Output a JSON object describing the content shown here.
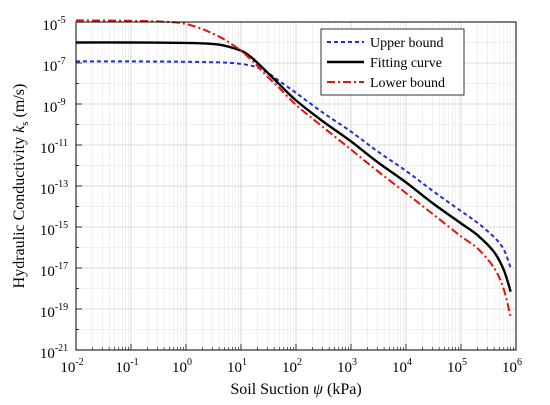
{
  "chart_data": {
    "type": "line",
    "xlabel_prefix": "Soil Suction ",
    "xlabel_symbol": "ψ",
    "xlabel_unit": " (kPa)",
    "ylabel_prefix": "Hydraulic Conductivity ",
    "ylabel_symbol": "k",
    "ylabel_subscript": "s",
    "ylabel_unit": " (m/s)",
    "x_scale": "log",
    "y_scale": "log",
    "xlim": [
      0.01,
      1000000
    ],
    "ylim": [
      1e-21,
      1e-05
    ],
    "x_ticks": [
      {
        "base": "10",
        "exp": "-2",
        "value": 0.01
      },
      {
        "base": "10",
        "exp": "-1",
        "value": 0.1
      },
      {
        "base": "10",
        "exp": "0",
        "value": 1
      },
      {
        "base": "10",
        "exp": "1",
        "value": 10
      },
      {
        "base": "10",
        "exp": "2",
        "value": 100
      },
      {
        "base": "10",
        "exp": "3",
        "value": 1000
      },
      {
        "base": "10",
        "exp": "4",
        "value": 10000
      },
      {
        "base": "10",
        "exp": "5",
        "value": 100000
      },
      {
        "base": "10",
        "exp": "6",
        "value": 1000000
      }
    ],
    "y_ticks": [
      {
        "base": "10",
        "exp": "-5",
        "value": 1e-05
      },
      {
        "base": "10",
        "exp": "-7",
        "value": 1e-07
      },
      {
        "base": "10",
        "exp": "-9",
        "value": 1e-09
      },
      {
        "base": "10",
        "exp": "-11",
        "value": 1e-11
      },
      {
        "base": "10",
        "exp": "-13",
        "value": 1e-13
      },
      {
        "base": "10",
        "exp": "-15",
        "value": 1e-15
      },
      {
        "base": "10",
        "exp": "-17",
        "value": 1e-17
      },
      {
        "base": "10",
        "exp": "-19",
        "value": 1e-19
      },
      {
        "base": "10",
        "exp": "-21",
        "value": 1e-21
      }
    ],
    "grid": true,
    "legend_position": "top-right",
    "series": [
      {
        "name": "Upper bound",
        "color": "#1f2fd6",
        "dash": "dashed",
        "x": [
          0.01,
          0.1,
          1,
          5,
          10,
          15,
          20,
          30,
          50,
          100,
          300,
          1000,
          3000,
          10000,
          30000,
          100000,
          200000,
          400000,
          600000,
          800000
        ],
        "y": [
          1.2e-07,
          1.2e-07,
          1.15e-07,
          1.05e-07,
          9e-08,
          7.5e-08,
          6e-08,
          3.5e-08,
          1.3e-08,
          3.5e-09,
          4e-10,
          4.5e-11,
          5e-12,
          5.5e-13,
          6e-14,
          6e-15,
          1.6e-15,
          3.2e-16,
          8e-17,
          1e-17
        ]
      },
      {
        "name": "Fitting curve",
        "color": "#000000",
        "dash": "solid",
        "x": [
          0.01,
          0.1,
          1,
          3,
          5,
          10,
          15,
          20,
          30,
          50,
          100,
          300,
          1000,
          3000,
          10000,
          30000,
          100000,
          200000,
          400000,
          600000,
          800000
        ],
        "y": [
          1e-06,
          1e-06,
          9.5e-07,
          8.5e-07,
          7e-07,
          4e-07,
          2e-07,
          1e-07,
          3.5e-08,
          9e-09,
          1.5e-09,
          1.5e-10,
          1.5e-11,
          1.5e-12,
          1.5e-13,
          1.5e-14,
          1.5e-15,
          4e-16,
          6e-17,
          8e-18,
          7e-19
        ]
      },
      {
        "name": "Lower bound",
        "color": "#e3120b",
        "dash": "dashdot",
        "x": [
          0.01,
          0.1,
          0.5,
          1,
          2,
          3,
          5,
          10,
          15,
          20,
          30,
          50,
          100,
          300,
          1000,
          3000,
          10000,
          30000,
          100000,
          200000,
          400000,
          600000,
          800000
        ],
        "y": [
          1.2e-05,
          1.15e-05,
          1e-05,
          8e-06,
          4.5e-06,
          2.8e-06,
          1.4e-06,
          4e-07,
          1.5e-07,
          7e-08,
          2.2e-08,
          6e-09,
          9e-10,
          8e-11,
          6e-12,
          5.5e-13,
          4.5e-14,
          4.5e-15,
          3.5e-16,
          9e-17,
          1e-17,
          9e-19,
          4e-20
        ]
      }
    ]
  }
}
